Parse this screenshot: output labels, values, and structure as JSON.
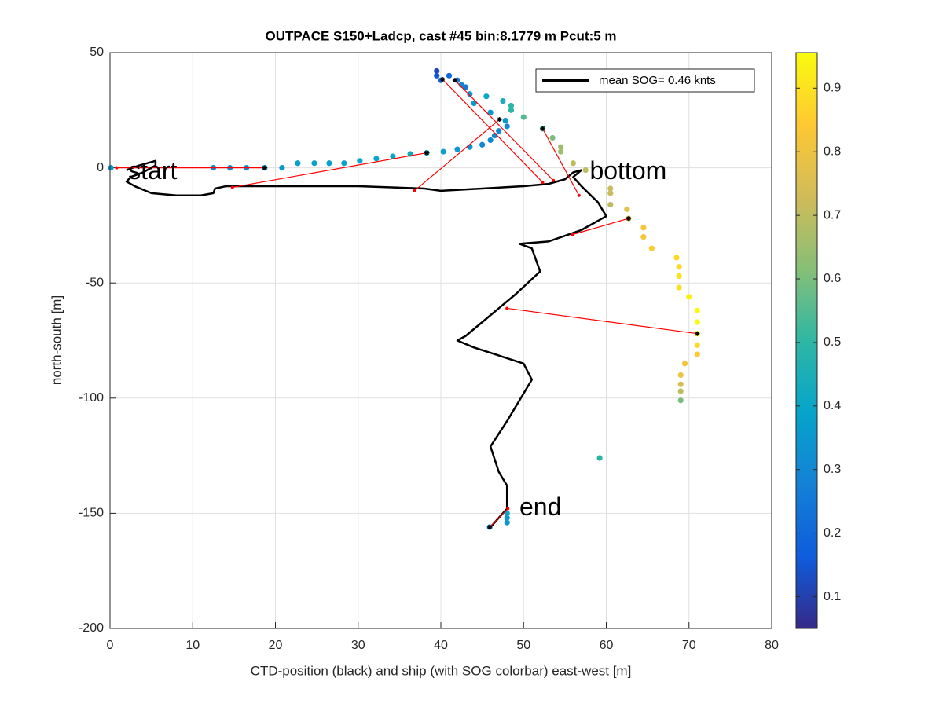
{
  "chart_data": {
    "type": "scatter",
    "title": "OUTPACE S150+Ladcp, cast #45 bin:8.1779 m  Pcut:5 m",
    "xlabel": "CTD-position (black) and ship (with SOG colorbar) east-west [m]",
    "ylabel": "north-south [m]",
    "xlim": [
      0,
      80
    ],
    "ylim": [
      -200,
      50
    ],
    "xticks": [
      0,
      10,
      20,
      30,
      40,
      50,
      60,
      70,
      80
    ],
    "yticks": [
      -200,
      -150,
      -100,
      -50,
      0,
      50
    ],
    "grid": true,
    "legend": "upper right",
    "ship": {
      "x": [
        0.1,
        12.5,
        14.5,
        16.5,
        18.7,
        20.8,
        22.7,
        24.7,
        26.5,
        28.3,
        30.2,
        32.2,
        34.2,
        36.3,
        38.3,
        40.3,
        42,
        43.5,
        45,
        46,
        46.5,
        47,
        48,
        47.8,
        46,
        44,
        43.5,
        42.5,
        42,
        41,
        39.5,
        39.5,
        40,
        43,
        45.5,
        47.5,
        48.5,
        48.5,
        50,
        52.3,
        53.5,
        54.5,
        54.5,
        56,
        57.5,
        60.5,
        60.5,
        60.5,
        62.5,
        62.7,
        64.5,
        64.5,
        65.5,
        68.5,
        68.8,
        68.8,
        68.8,
        70,
        71,
        71,
        71,
        71,
        71,
        69.5,
        69,
        69,
        69,
        69,
        59.2,
        48,
        48,
        48,
        45.9
      ],
      "y": [
        0,
        0,
        0,
        0,
        0,
        0,
        2,
        2,
        2,
        2,
        3,
        4,
        5,
        6,
        6.5,
        7,
        8,
        9,
        10,
        12,
        14,
        16,
        18,
        20.5,
        24,
        28,
        32,
        36,
        38,
        40,
        42,
        40,
        38,
        35,
        31,
        29,
        27,
        25,
        22,
        17,
        13,
        9,
        7,
        2,
        -1,
        -9,
        -11,
        -16,
        -18,
        -22,
        -26,
        -30,
        -35,
        -39,
        -43,
        -47,
        -52,
        -56,
        -62,
        -67,
        -72,
        -77,
        -81,
        -85,
        -90,
        -94,
        -97,
        -101,
        -126,
        -150,
        -152,
        -154,
        -156
      ],
      "sog": [
        0.35,
        0.3,
        0.3,
        0.3,
        0.3,
        0.35,
        0.38,
        0.38,
        0.38,
        0.38,
        0.4,
        0.4,
        0.4,
        0.42,
        0.42,
        0.38,
        0.35,
        0.32,
        0.3,
        0.3,
        0.3,
        0.3,
        0.3,
        0.35,
        0.35,
        0.35,
        0.35,
        0.3,
        0.25,
        0.2,
        0.12,
        0.15,
        0.2,
        0.25,
        0.4,
        0.45,
        0.5,
        0.5,
        0.55,
        0.5,
        0.6,
        0.65,
        0.65,
        0.7,
        0.7,
        0.72,
        0.72,
        0.7,
        0.78,
        0.78,
        0.82,
        0.82,
        0.85,
        0.88,
        0.88,
        0.9,
        0.9,
        0.93,
        0.95,
        0.95,
        0.95,
        0.88,
        0.85,
        0.82,
        0.8,
        0.75,
        0.7,
        0.6,
        0.5,
        0.4,
        0.35,
        0.35,
        0.3
      ]
    },
    "ctd": {
      "name": "mean SOG=  0.46 knts",
      "color": "#000000",
      "x": [
        2,
        3.5,
        5.5,
        5.5,
        4,
        2.5,
        2,
        3,
        5,
        8,
        11,
        12.5,
        12.7,
        14,
        20,
        30,
        38,
        40,
        45,
        50,
        53,
        55,
        56,
        57,
        56,
        57,
        59,
        60,
        57,
        53,
        49.5,
        51,
        52,
        49,
        46,
        43,
        42,
        44,
        50,
        51,
        48,
        46,
        47,
        48,
        48,
        46
      ],
      "y": [
        -1,
        1,
        3,
        1,
        -2,
        -4,
        -6,
        -8,
        -11,
        -12,
        -12,
        -11,
        -9,
        -8,
        -8,
        -8,
        -9,
        -10,
        -9,
        -8,
        -7,
        -5,
        -2,
        -1,
        -4,
        -8,
        -15,
        -21,
        -27,
        -32,
        -33,
        -35,
        -45,
        -55,
        -64,
        -73,
        -75,
        -78,
        -85,
        -92,
        -110,
        -121,
        -132,
        -138,
        -148,
        -156
      ]
    },
    "links": {
      "color": "#ff0000",
      "segments": [
        [
          18.7,
          0,
          0.8,
          0
        ],
        [
          38.3,
          6.5,
          14.8,
          -8.5
        ],
        [
          47.1,
          21,
          36.8,
          -10
        ],
        [
          40.2,
          38.4,
          52.3,
          -6.3
        ],
        [
          41.7,
          38,
          53.6,
          -5.5
        ],
        [
          52.3,
          17,
          56.7,
          -12
        ],
        [
          62.7,
          -22,
          55.9,
          -29
        ],
        [
          71,
          -72,
          48,
          -61
        ],
        [
          45.9,
          -156,
          48.1,
          -148
        ]
      ]
    },
    "annotations": [
      {
        "text": "start",
        "x": 2.2,
        "y": -2
      },
      {
        "text": "bottom",
        "x": 58,
        "y": -2
      },
      {
        "text": "end",
        "x": 49.5,
        "y": -148
      }
    ],
    "colorbar": {
      "clim": [
        0.05,
        0.956
      ],
      "ticks": [
        0.1,
        0.2,
        0.3,
        0.4,
        0.5,
        0.6,
        0.7,
        0.8,
        0.9
      ],
      "colormap": [
        "#352a87",
        "#0f5cdd",
        "#1481d6",
        "#06a4ca",
        "#2eb7a4",
        "#87bf77",
        "#d1bb59",
        "#fec832",
        "#f9fb0e"
      ]
    }
  }
}
